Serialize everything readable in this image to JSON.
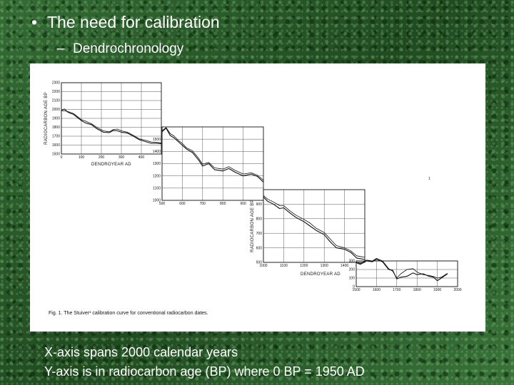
{
  "slide": {
    "bullet_symbol": "•",
    "bullet": "The need for calibration",
    "sub_symbol": "–",
    "sub_bullet": "Dendrochronology",
    "note_line1": "X-axis spans 2000 calendar years",
    "note_line2": "Y-axis is in radiocarbon age (BP) where 0 BP = 1950 AD"
  },
  "figure": {
    "caption": "Fig. 1. The Stuiver¹ calibration curve for conventional radiocarbon dates.",
    "stray_mark": "1"
  },
  "colors": {
    "background": "#2c5a2c",
    "text": "#ffffff",
    "ink": "#111111"
  },
  "chart_data": [
    {
      "type": "line",
      "panel": 1,
      "xlabel": "DENDROYEAR AD",
      "ylabel": "RADIOCARBON AGE BP",
      "xlim": [
        0,
        500
      ],
      "ylim": [
        1500,
        2300
      ],
      "xticks": [
        0,
        100,
        200,
        300,
        400
      ],
      "yticks": [
        1500,
        1600,
        1700,
        1800,
        1900,
        2000,
        2100,
        2200,
        2300
      ],
      "series": [
        {
          "x": [
            0,
            15,
            35,
            60,
            80,
            100,
            120,
            150,
            180,
            210,
            240,
            260,
            280,
            300,
            330,
            360,
            390,
            420,
            450,
            480,
            500
          ],
          "y": [
            1990,
            2005,
            1965,
            1945,
            1910,
            1875,
            1850,
            1830,
            1780,
            1745,
            1740,
            1765,
            1760,
            1745,
            1735,
            1700,
            1660,
            1640,
            1620,
            1620,
            1615
          ]
        },
        {
          "x": [
            0,
            15,
            35,
            60,
            80,
            100,
            120,
            150,
            180,
            210,
            240,
            260,
            280,
            300,
            330,
            360,
            390,
            420,
            450,
            480,
            500
          ],
          "y": [
            1985,
            1985,
            1975,
            1955,
            1920,
            1885,
            1870,
            1840,
            1795,
            1760,
            1750,
            1775,
            1780,
            1760,
            1745,
            1710,
            1670,
            1655,
            1635,
            1630,
            1625
          ]
        }
      ]
    },
    {
      "type": "line",
      "panel": 2,
      "xlabel": "",
      "ylabel": "",
      "xlim": [
        500,
        1000
      ],
      "ylim": [
        1000,
        1600
      ],
      "xticks": [
        500,
        600,
        700,
        800,
        900
      ],
      "yticks": [
        1000,
        1100,
        1200,
        1300,
        1400,
        1500
      ],
      "series": [
        {
          "x": [
            500,
            520,
            540,
            560,
            580,
            600,
            620,
            650,
            680,
            700,
            730,
            760,
            800,
            830,
            860,
            900,
            940,
            970,
            1000
          ],
          "y": [
            1560,
            1590,
            1530,
            1510,
            1480,
            1450,
            1420,
            1390,
            1330,
            1280,
            1300,
            1250,
            1240,
            1260,
            1230,
            1200,
            1215,
            1195,
            1150
          ]
        },
        {
          "x": [
            500,
            520,
            540,
            560,
            580,
            600,
            620,
            650,
            680,
            700,
            730,
            760,
            800,
            830,
            860,
            900,
            940,
            970,
            1000
          ],
          "y": [
            1570,
            1595,
            1545,
            1525,
            1490,
            1465,
            1430,
            1405,
            1345,
            1295,
            1310,
            1265,
            1255,
            1275,
            1245,
            1215,
            1225,
            1205,
            1165
          ]
        }
      ]
    },
    {
      "type": "line",
      "panel": 3,
      "xlabel": "DENDROYEAR AD",
      "ylabel": "RADIOCARBON AGE BP",
      "xlim": [
        1000,
        1500
      ],
      "ylim": [
        500,
        1000
      ],
      "xticks": [
        1000,
        1100,
        1200,
        1300,
        1400
      ],
      "yticks": [
        500,
        600,
        700,
        800,
        900
      ],
      "series": [
        {
          "x": [
            1000,
            1020,
            1050,
            1080,
            1100,
            1130,
            1160,
            1200,
            1230,
            1260,
            1300,
            1330,
            1360,
            1400,
            1430,
            1460,
            1500
          ],
          "y": [
            950,
            920,
            900,
            870,
            875,
            840,
            810,
            780,
            750,
            720,
            690,
            640,
            600,
            590,
            570,
            530,
            520
          ]
        },
        {
          "x": [
            1000,
            1020,
            1050,
            1080,
            1100,
            1130,
            1160,
            1200,
            1230,
            1260,
            1300,
            1330,
            1360,
            1400,
            1430,
            1460,
            1500
          ],
          "y": [
            960,
            935,
            915,
            890,
            890,
            855,
            825,
            795,
            770,
            735,
            705,
            660,
            615,
            600,
            580,
            545,
            535
          ]
        }
      ]
    },
    {
      "type": "line",
      "panel": 4,
      "xlabel": "",
      "ylabel": "",
      "xlim": [
        1500,
        2000
      ],
      "ylim": [
        0,
        300
      ],
      "xticks": [
        1500,
        1600,
        1700,
        1800,
        1900,
        2000
      ],
      "yticks": [
        0,
        100,
        200,
        300
      ],
      "series": [
        {
          "x": [
            1500,
            1520,
            1550,
            1580,
            1600,
            1630,
            1660,
            1680,
            1700,
            1720,
            1750,
            1780,
            1800,
            1830,
            1860,
            1880,
            1900,
            1920,
            1950
          ],
          "y": [
            280,
            260,
            300,
            290,
            320,
            290,
            200,
            190,
            90,
            110,
            120,
            160,
            140,
            150,
            120,
            110,
            70,
            100,
            150
          ]
        },
        {
          "x": [
            1500,
            1520,
            1550,
            1580,
            1600,
            1630,
            1660,
            1680,
            1700,
            1720,
            1750,
            1780,
            1800,
            1830,
            1860,
            1880,
            1900,
            1920,
            1950
          ],
          "y": [
            290,
            270,
            310,
            300,
            330,
            300,
            210,
            180,
            100,
            150,
            200,
            210,
            170,
            140,
            130,
            120,
            100,
            110,
            155
          ]
        }
      ]
    }
  ]
}
